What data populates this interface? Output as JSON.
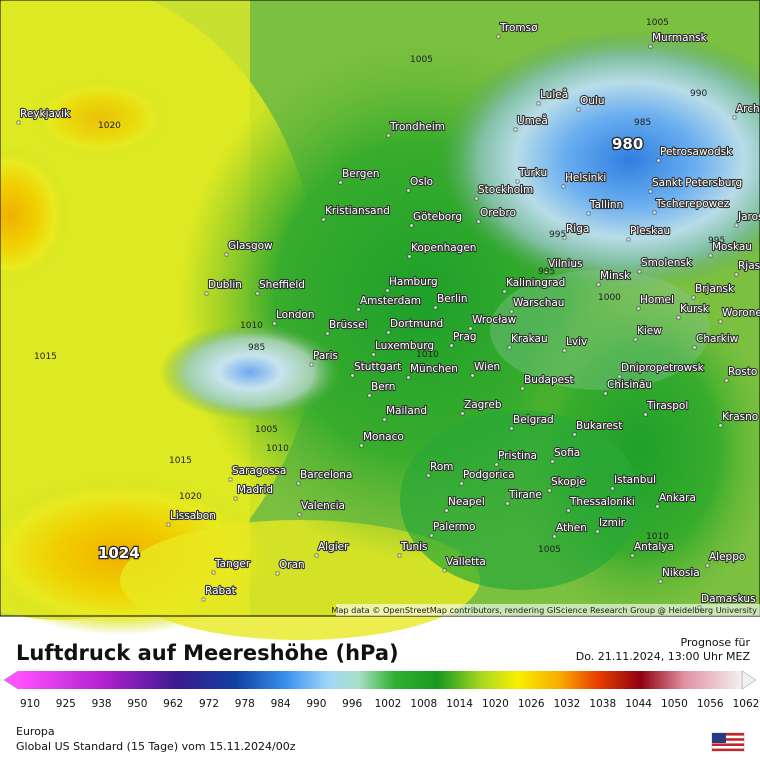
{
  "map": {
    "cities": [
      "Tromsø",
      "Murmansk",
      "Reykjavik",
      "Luleå",
      "Oulu",
      "Umeå",
      "Trondheim",
      "Petrosawodsk",
      "Bergen",
      "Turku",
      "Helsinki",
      "Sankt Petersburg",
      "Oslo",
      "Stockholm",
      "Kristiansand",
      "Göteborg",
      "Orebro",
      "Tallinn",
      "Tscherepowez",
      "Jaros",
      "Glasgow",
      "Kopenhagen",
      "Riga",
      "Pleskau",
      "Moskau",
      "Dublin",
      "Sheffield",
      "Hamburg",
      "Vilnius",
      "Smolensk",
      "Rjas",
      "Minsk",
      "Kaliningrad",
      "London",
      "Amsterdam",
      "Berlin",
      "Warschau",
      "Homel",
      "Brjansk",
      "Kursk",
      "Worone",
      "Brüssel",
      "Dortmund",
      "Wrocław",
      "Krakau",
      "Kiew",
      "Charkiw",
      "Paris",
      "Luxemburg",
      "Prag",
      "Lviv",
      "Stuttgart",
      "München",
      "Wien",
      "Dnipropetrowsk",
      "Rosto",
      "Bern",
      "Budapest",
      "Chisinău",
      "Mailand",
      "Zagreb",
      "Tiraspol",
      "Krasno",
      "Monaco",
      "Belgrad",
      "Bukarest",
      "Pristina",
      "Sofia",
      "Saragossa",
      "Barcelona",
      "Rom",
      "Podgorica",
      "Istanbul",
      "Madrid",
      "Skopje",
      "Tirane",
      "Neapel",
      "Thessaloniki",
      "Ankara",
      "Valencia",
      "Lissabon",
      "Izmir",
      "Athen",
      "Palermo",
      "Antalya",
      "Algier",
      "Tunis",
      "Tanger",
      "Oran",
      "Valletta",
      "Aleppo",
      "Nikosia",
      "Rabat",
      "Damaskus",
      "Arch"
    ],
    "isobar_labels": [
      "1005",
      "1005",
      "990",
      "1020",
      "985",
      "980",
      "995",
      "995",
      "995",
      "1015",
      "985",
      "1010",
      "1000",
      "1005",
      "1010",
      "1010",
      "1015",
      "1020",
      "1024",
      "1010",
      "1005"
    ],
    "attribution": "Map data © OpenStreetMap contributors, rendering GIScience Research Group @ Heidelberg University"
  },
  "legend": {
    "title": "Luftdruck auf Meereshöhe (hPa)",
    "forecast_label": "Prognose für",
    "forecast_time": "Do. 21.11.2024, 13:00 Uhr MEZ",
    "ticks": [
      910,
      925,
      938,
      950,
      962,
      972,
      978,
      984,
      990,
      996,
      1002,
      1008,
      1014,
      1020,
      1026,
      1032,
      1038,
      1044,
      1050,
      1056,
      1062
    ],
    "region": "Europa",
    "model": "Global US Standard (15 Tage) vom  15.11.2024/00z"
  }
}
